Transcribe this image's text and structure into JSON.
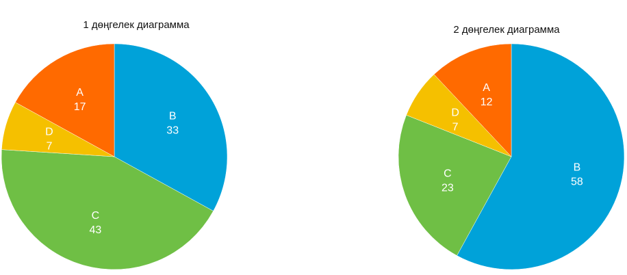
{
  "colors": {
    "A": "#FF6A00",
    "B": "#00A2D9",
    "C": "#6FBF45",
    "D": "#F5C000"
  },
  "chart_data": [
    {
      "type": "pie",
      "title": "1 дөңгелек диаграмма",
      "slices": [
        {
          "label": "B",
          "value": 33
        },
        {
          "label": "C",
          "value": 43
        },
        {
          "label": "D",
          "value": 7
        },
        {
          "label": "A",
          "value": 17
        }
      ]
    },
    {
      "type": "pie",
      "title": "2 дөңгелек диаграмма",
      "slices": [
        {
          "label": "B",
          "value": 58
        },
        {
          "label": "C",
          "value": 23
        },
        {
          "label": "D",
          "value": 7
        },
        {
          "label": "A",
          "value": 12
        }
      ]
    }
  ]
}
